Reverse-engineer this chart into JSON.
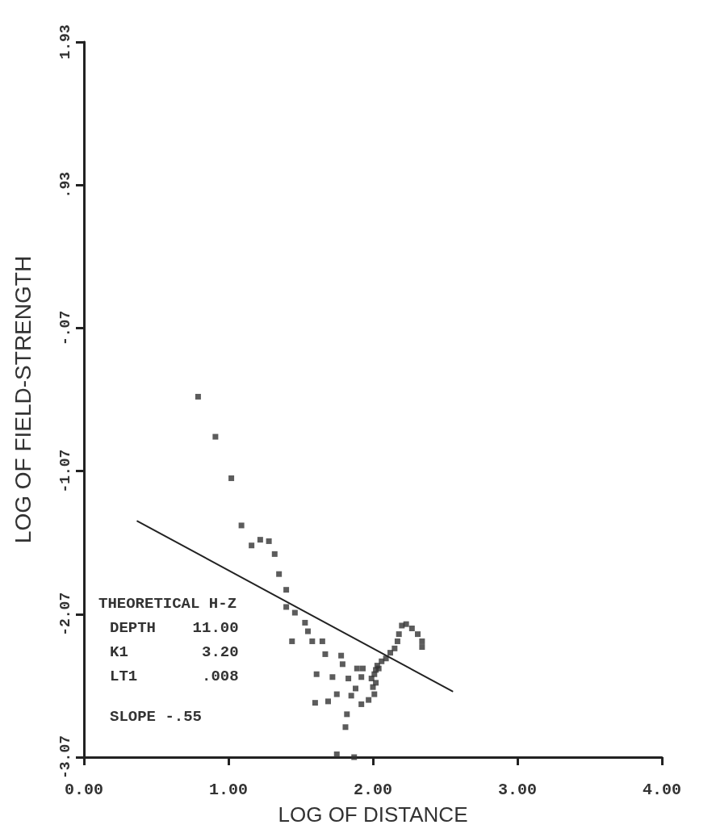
{
  "chart_data": {
    "type": "scatter",
    "xlabel": "LOG OF DISTANCE",
    "ylabel": "LOG OF FIELD-STRENGTH",
    "xlim": [
      0,
      4
    ],
    "xticks": [
      {
        "value": 0,
        "label": "0.00"
      },
      {
        "value": 1,
        "label": "1.00"
      },
      {
        "value": 2,
        "label": "2.00"
      },
      {
        "value": 3,
        "label": "3.00"
      },
      {
        "value": 4,
        "label": "4.00"
      }
    ],
    "ylim": [
      -3.07,
      1.93
    ],
    "yticks": [
      {
        "value": -3.07,
        "label": "-3.07"
      },
      {
        "value": -2.07,
        "label": "-2.07"
      },
      {
        "value": -1.07,
        "label": "-1.07"
      },
      {
        "value": -0.07,
        "label": "-.07"
      },
      {
        "value": 0.93,
        "label": ".93"
      },
      {
        "value": 1.93,
        "label": "1.93"
      }
    ],
    "marker": "square",
    "annotations": [
      "THEORETICAL H-Z",
      "DEPTH    11.00",
      "K1        3.20",
      "LT1       .008",
      "SLOPE -.55"
    ],
    "series": [
      {
        "color": "#333333",
        "x": [
          0.79,
          0.91,
          1.02,
          1.09,
          1.16,
          1.22,
          1.28,
          1.32,
          1.35,
          1.4,
          1.4,
          1.46,
          1.53,
          1.55,
          1.44,
          1.58,
          1.65,
          1.67,
          1.78,
          1.79,
          1.61,
          1.72,
          1.83,
          1.89,
          1.92,
          1.88,
          1.75,
          1.85,
          1.6,
          1.69,
          1.92,
          1.97,
          2.01,
          2.0,
          1.82,
          1.81,
          1.75,
          1.87,
          2.02,
          2.01,
          2.04,
          2.06,
          2.09,
          2.12,
          2.15,
          2.17,
          2.18,
          2.2,
          2.23,
          2.27,
          2.31,
          2.34,
          2.34,
          2.03,
          1.99,
          2.02,
          1.93
        ],
        "values": [
          -0.55,
          -0.83,
          -1.12,
          -1.45,
          -1.59,
          -1.55,
          -1.56,
          -1.65,
          -1.79,
          -1.9,
          -2.02,
          -2.06,
          -2.13,
          -2.19,
          -2.26,
          -2.26,
          -2.26,
          -2.35,
          -2.36,
          -2.42,
          -2.49,
          -2.51,
          -2.52,
          -2.45,
          -2.51,
          -2.59,
          -2.63,
          -2.64,
          -2.69,
          -2.68,
          -2.7,
          -2.67,
          -2.63,
          -2.58,
          -2.77,
          -2.86,
          -3.05,
          -3.07,
          -2.46,
          -2.49,
          -2.45,
          -2.4,
          -2.38,
          -2.34,
          -2.31,
          -2.26,
          -2.21,
          -2.15,
          -2.14,
          -2.17,
          -2.21,
          -2.26,
          -2.3,
          -2.43,
          -2.52,
          -2.55,
          -2.45
        ]
      },
      {
        "type": "line",
        "color": "#222222",
        "marker": "none",
        "x": [
          0.37,
          2.55
        ],
        "values": [
          -1.42,
          -2.61
        ]
      }
    ]
  }
}
